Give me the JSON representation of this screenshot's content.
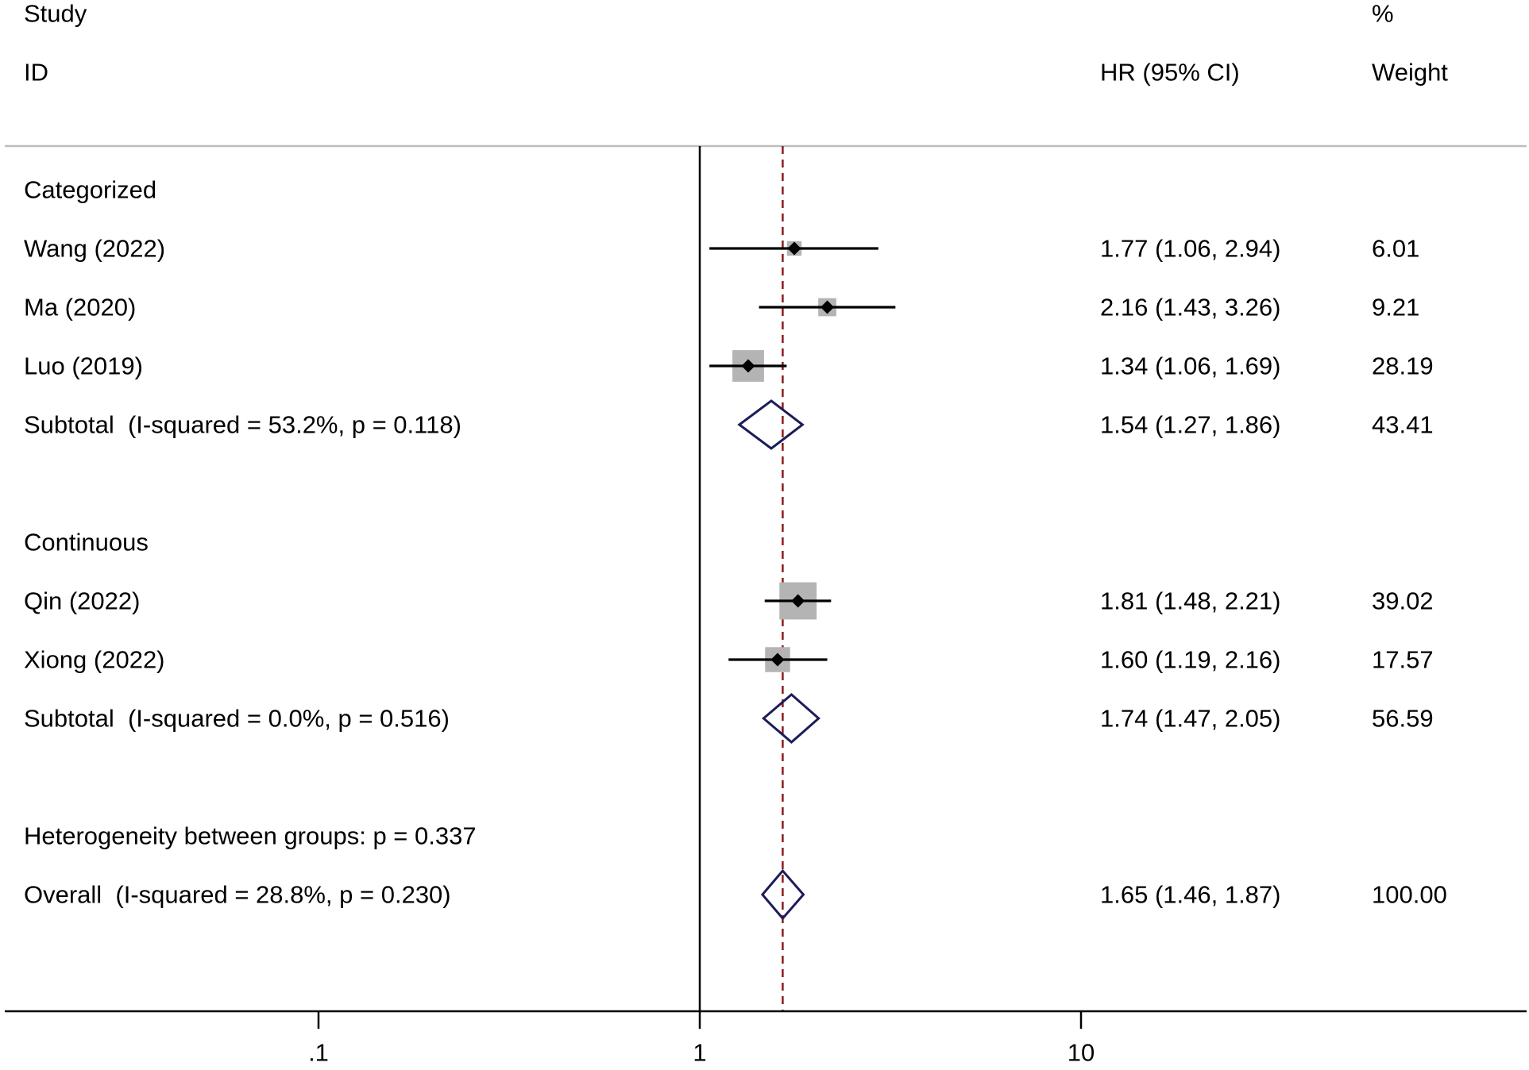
{
  "header": {
    "study_line1": "Study",
    "study_line2": "ID",
    "estimate": "HR (95% CI)",
    "weight_line1": "%",
    "weight_line2": "Weight"
  },
  "colors": {
    "text": "#000000",
    "square": "#b4b4b4",
    "marker": "#000000",
    "diamond": "#1c1c5a",
    "overall_line": "#8b1c1c",
    "rule": "#bdbdbd",
    "axis": "#000000"
  },
  "chart_data": {
    "type": "scatter",
    "x_scale": "log",
    "xlim": [
      0.015,
      148
    ],
    "x_ticks": [
      0.1,
      1,
      10
    ],
    "x_tick_labels": [
      ".1",
      "1",
      "10"
    ],
    "null_line": 1,
    "overall_line": 1.65,
    "rows": [
      {
        "kind": "group",
        "label": "Categorized"
      },
      {
        "kind": "study",
        "label": "Wang (2022)",
        "hr": 1.77,
        "lower": 1.06,
        "upper": 2.94,
        "estimate": "1.77 (1.06, 2.94)",
        "weight": "6.01"
      },
      {
        "kind": "study",
        "label": "Ma (2020)",
        "hr": 2.16,
        "lower": 1.43,
        "upper": 3.26,
        "estimate": "2.16 (1.43, 3.26)",
        "weight": "9.21"
      },
      {
        "kind": "study",
        "label": "Luo (2019)",
        "hr": 1.34,
        "lower": 1.06,
        "upper": 1.69,
        "estimate": "1.34 (1.06, 1.69)",
        "weight": "28.19"
      },
      {
        "kind": "subtotal",
        "label": "Subtotal  (I-squared = 53.2%, p = 0.118)",
        "hr": 1.54,
        "lower": 1.27,
        "upper": 1.86,
        "estimate": "1.54 (1.27, 1.86)",
        "weight": "43.41"
      },
      {
        "kind": "group",
        "label": "Continuous"
      },
      {
        "kind": "study",
        "label": "Qin (2022)",
        "hr": 1.81,
        "lower": 1.48,
        "upper": 2.21,
        "estimate": "1.81 (1.48, 2.21)",
        "weight": "39.02"
      },
      {
        "kind": "study",
        "label": "Xiong (2022)",
        "hr": 1.6,
        "lower": 1.19,
        "upper": 2.16,
        "estimate": "1.60 (1.19, 2.16)",
        "weight": "17.57"
      },
      {
        "kind": "subtotal",
        "label": "Subtotal  (I-squared = 0.0%, p = 0.516)",
        "hr": 1.74,
        "lower": 1.47,
        "upper": 2.05,
        "estimate": "1.74 (1.47, 2.05)",
        "weight": "56.59"
      },
      {
        "kind": "note",
        "label": "Heterogeneity between groups: p = 0.337"
      },
      {
        "kind": "overall",
        "label": "Overall  (I-squared = 28.8%, p = 0.230)",
        "hr": 1.65,
        "lower": 1.46,
        "upper": 1.87,
        "estimate": "1.65 (1.46, 1.87)",
        "weight": "100.00"
      }
    ]
  }
}
